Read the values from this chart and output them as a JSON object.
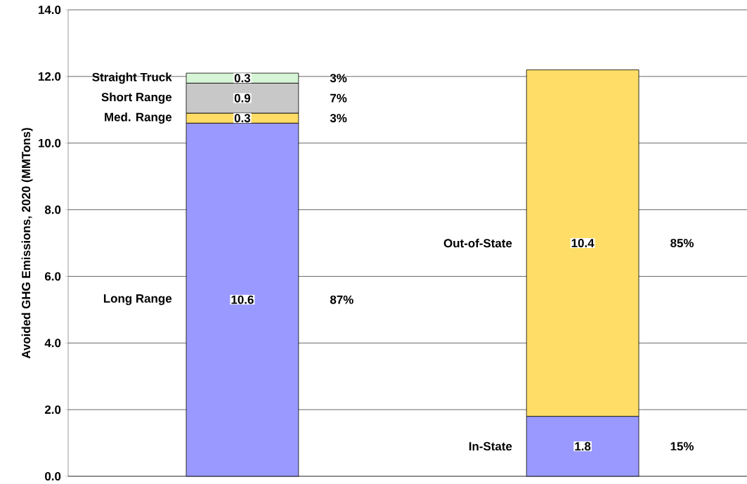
{
  "chart_data": {
    "type": "bar",
    "stacked": true,
    "ylabel": "Avoided GHG Emissions, 2020 (MMTons)",
    "categories": [
      null,
      null
    ],
    "series": [
      {
        "name": "Long Range",
        "color": "#9999ff",
        "values": [
          10.6,
          null
        ]
      },
      {
        "name": "Med. Range",
        "color": "#ffdd66",
        "values": [
          0.3,
          null
        ]
      },
      {
        "name": "Short Range",
        "color": "#c8c8c8",
        "values": [
          0.9,
          null
        ]
      },
      {
        "name": "Straight Truck",
        "color": "#d6f5d6",
        "values": [
          0.3,
          null
        ]
      },
      {
        "name": "In-State",
        "color": "#9999ff",
        "values": [
          null,
          1.8
        ]
      },
      {
        "name": "Out-of-State",
        "color": "#ffdd66",
        "values": [
          null,
          10.4
        ]
      }
    ],
    "data_labels": true,
    "annotations": [
      "87%",
      "3%",
      "7%",
      "3%",
      "15%",
      "85%"
    ],
    "ylim": [
      0,
      14
    ],
    "yticks": [
      {
        "value": 0,
        "label": "0.0"
      },
      {
        "value": 2,
        "label": "2.0"
      },
      {
        "value": 4,
        "label": "4.0"
      },
      {
        "value": 6,
        "label": "6.0"
      },
      {
        "value": 8,
        "label": "8.0"
      },
      {
        "value": 10,
        "label": "10.0"
      },
      {
        "value": 12,
        "label": "12.0"
      },
      {
        "value": 14,
        "label": "14.0"
      }
    ],
    "grid": "y",
    "tick_labels": "y"
  }
}
